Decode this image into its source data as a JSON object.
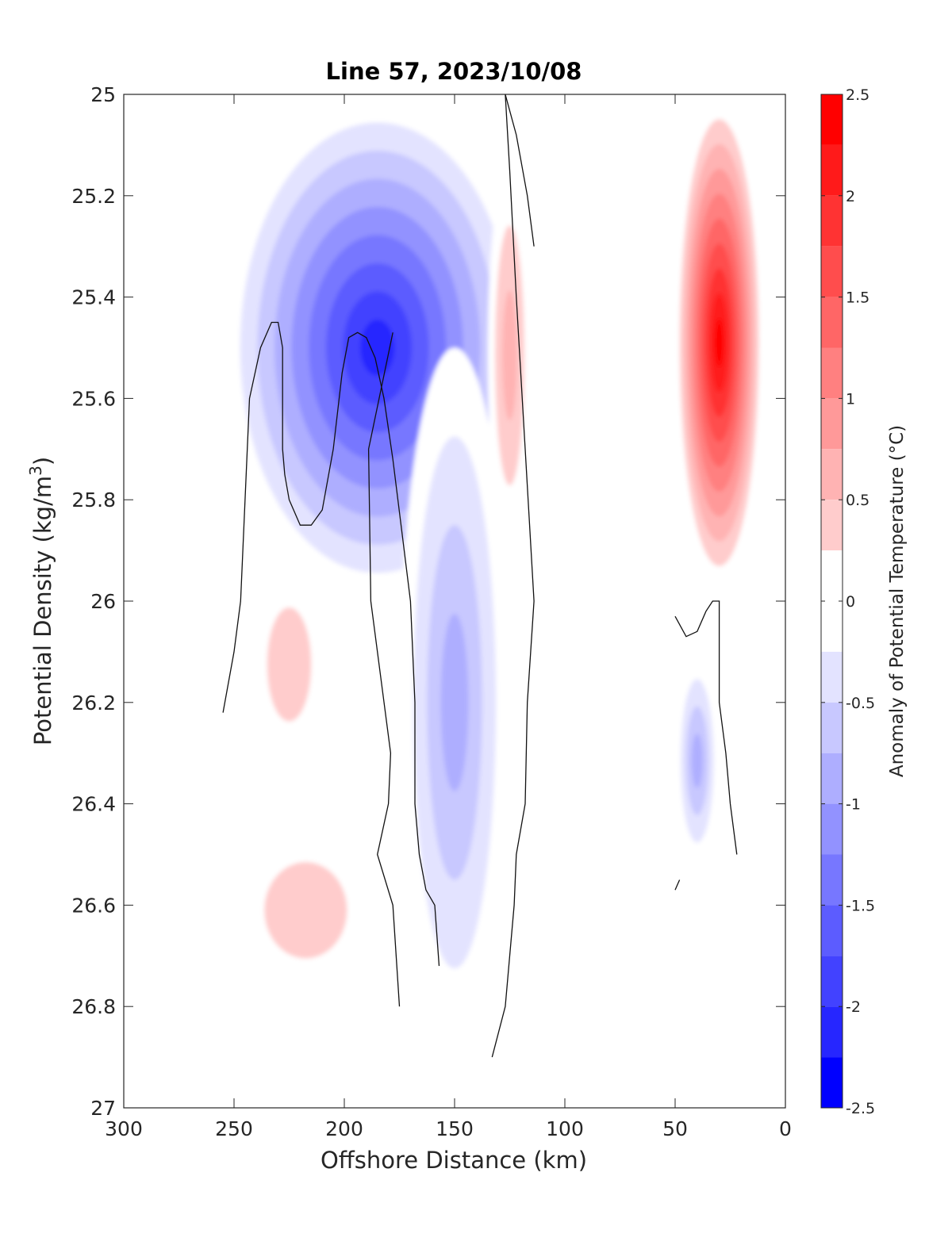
{
  "chart_data": {
    "type": "heatmap",
    "title": "Line 57, 2023/10/08",
    "xlabel": "Offshore Distance (km)",
    "ylabel": "Potential Density (kg/m",
    "ylabel_superscript": "3",
    "ylabel_suffix": ")",
    "xlim": [
      300,
      0
    ],
    "x_reversed": true,
    "ylim": [
      25,
      27
    ],
    "y_reversed": true,
    "xticks": [
      300,
      250,
      200,
      150,
      100,
      50,
      0
    ],
    "xtick_labels": [
      "300",
      "250",
      "200",
      "150",
      "100",
      "50",
      "0"
    ],
    "yticks": [
      25,
      25.2,
      25.4,
      25.6,
      25.8,
      26,
      26.2,
      26.4,
      26.6,
      26.8,
      27
    ],
    "ytick_labels": [
      "25",
      "25.2",
      "25.4",
      "25.6",
      "25.8",
      "26",
      "26.2",
      "26.4",
      "26.6",
      "26.8",
      "27"
    ],
    "grid": false,
    "colorbar": {
      "label": "Anomaly of Potential Temperature (°C)",
      "range": [
        -2.5,
        2.5
      ],
      "ticks": [
        2.5,
        2,
        1.5,
        1,
        0.5,
        0,
        -0.5,
        -1,
        -1.5,
        -2,
        -2.5
      ],
      "tick_labels": [
        "2.5",
        "2",
        "1.5",
        "1",
        "0.5",
        "0",
        "-0.5",
        "-1",
        "-1.5",
        "-2",
        "-2.5"
      ],
      "levels": [
        {
          "from": 2.25,
          "to": 2.5,
          "color": "#ff0000"
        },
        {
          "from": 2.0,
          "to": 2.25,
          "color": "#ff1a1a"
        },
        {
          "from": 1.75,
          "to": 2.0,
          "color": "#ff3333"
        },
        {
          "from": 1.5,
          "to": 1.75,
          "color": "#ff4d4d"
        },
        {
          "from": 1.25,
          "to": 1.5,
          "color": "#ff6666"
        },
        {
          "from": 1.0,
          "to": 1.25,
          "color": "#ff8080"
        },
        {
          "from": 0.75,
          "to": 1.0,
          "color": "#ff9999"
        },
        {
          "from": 0.5,
          "to": 0.75,
          "color": "#ffb3b3"
        },
        {
          "from": 0.25,
          "to": 0.5,
          "color": "#ffcccc"
        },
        {
          "from": 0.0,
          "to": 0.25,
          "color": "#ffffff"
        },
        {
          "from": -0.25,
          "to": 0.0,
          "color": "#ffffff"
        },
        {
          "from": -0.5,
          "to": -0.25,
          "color": "#e3e3ff"
        },
        {
          "from": -0.75,
          "to": -0.5,
          "color": "#c8c8ff"
        },
        {
          "from": -1.0,
          "to": -0.75,
          "color": "#aeaeff"
        },
        {
          "from": -1.25,
          "to": -1.0,
          "color": "#9292ff"
        },
        {
          "from": -1.5,
          "to": -1.25,
          "color": "#7777ff"
        },
        {
          "from": -1.75,
          "to": -1.5,
          "color": "#5c5cff"
        },
        {
          "from": -2.0,
          "to": -1.75,
          "color": "#4242ff"
        },
        {
          "from": -2.25,
          "to": -2.0,
          "color": "#2626ff"
        },
        {
          "from": -2.5,
          "to": -2.25,
          "color": "#0000ff"
        }
      ]
    },
    "regions": [
      {
        "name": "offshore-cold-core",
        "x_range": [
          255,
          115
        ],
        "y_range": [
          25.0,
          26.0
        ],
        "min_value": -2.3
      },
      {
        "name": "subsurface-cold-band",
        "x_range": [
          175,
          125
        ],
        "y_range": [
          25.5,
          26.9
        ],
        "min_value": -1.0
      },
      {
        "name": "warm-lens-west",
        "x_range": [
          245,
          205
        ],
        "y_range": [
          25.9,
          26.35
        ],
        "max_value": 0.6
      },
      {
        "name": "warm-layer-deep",
        "x_range": [
          255,
          180
        ],
        "y_range": [
          26.42,
          26.8
        ],
        "max_value": 0.4
      },
      {
        "name": "warm-streak",
        "x_range": [
          135,
          115
        ],
        "y_range": [
          25.13,
          25.9
        ],
        "max_value": 0.7
      },
      {
        "name": "coastal-warm-core",
        "x_range": [
          50,
          10
        ],
        "y_range": [
          25.0,
          25.98
        ],
        "max_value": 2.4
      },
      {
        "name": "coastal-cold-patch",
        "x_range": [
          50,
          30
        ],
        "y_range": [
          26.1,
          26.53
        ],
        "min_value": -0.9
      }
    ],
    "zero_contours": [
      {
        "x": [
          255,
          250,
          247,
          245,
          243,
          238,
          233,
          230,
          228,
          228,
          227,
          225,
          220,
          215,
          210,
          205,
          201,
          198,
          194,
          190,
          186,
          182,
          178,
          174,
          170,
          168,
          168,
          166,
          163,
          159,
          157
        ],
        "y": [
          26.22,
          26.1,
          26.0,
          25.8,
          25.6,
          25.5,
          25.45,
          25.45,
          25.5,
          25.7,
          25.75,
          25.8,
          25.85,
          25.85,
          25.82,
          25.7,
          25.55,
          25.48,
          25.47,
          25.48,
          25.52,
          25.6,
          25.72,
          25.86,
          26.0,
          26.2,
          26.4,
          26.5,
          26.57,
          26.6,
          26.72
        ]
      },
      {
        "x": [
          175,
          178,
          185,
          180,
          179,
          188,
          189,
          178
        ],
        "y": [
          26.8,
          26.6,
          26.5,
          26.4,
          26.3,
          26.0,
          25.7,
          25.47
        ]
      },
      {
        "x": [
          133,
          127,
          125,
          123,
          122,
          118,
          117,
          114,
          118,
          122,
          125,
          127
        ],
        "y": [
          26.9,
          26.8,
          26.7,
          26.6,
          26.5,
          26.4,
          26.2,
          26.0,
          25.7,
          25.4,
          25.15,
          25.0
        ]
      },
      {
        "x": [
          127,
          122,
          117,
          114
        ],
        "y": [
          25.0,
          25.08,
          25.2,
          25.3
        ]
      },
      {
        "x": [
          50,
          45,
          40,
          36,
          33,
          30,
          30,
          27,
          25,
          22
        ],
        "y": [
          26.03,
          26.07,
          26.06,
          26.02,
          26.0,
          26.0,
          26.2,
          26.3,
          26.4,
          26.5
        ]
      },
      {
        "x": [
          50,
          48
        ],
        "y": [
          26.57,
          26.55
        ]
      }
    ]
  }
}
